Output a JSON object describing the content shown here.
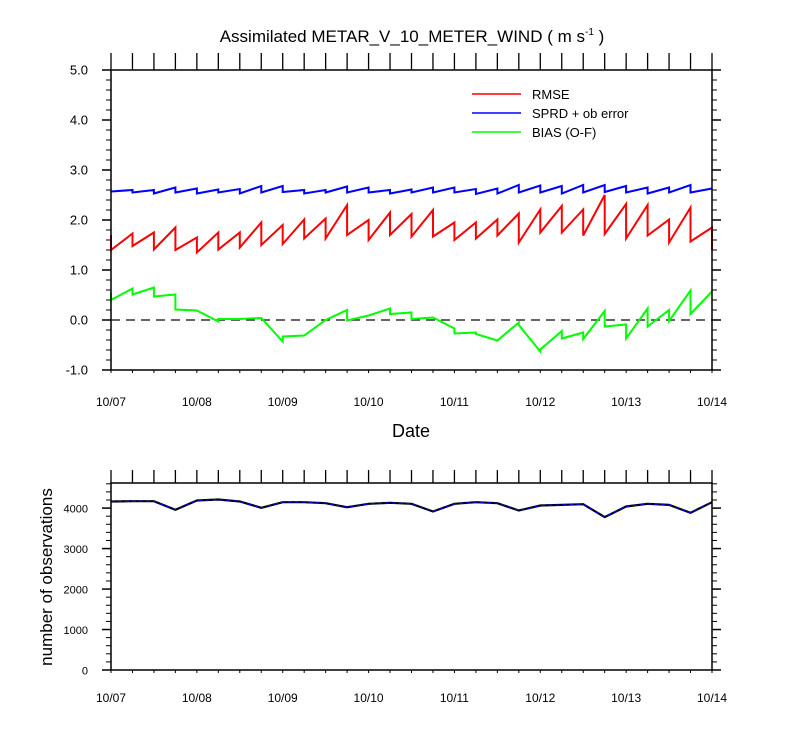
{
  "chart_data": [
    {
      "type": "line",
      "title": "Assimilated METAR_V_10_METER_WIND ( m s",
      "title_superscript": "-1",
      "title_close": " )",
      "xlabel": "Date",
      "ylabel": "",
      "ylim": [
        -1.0,
        5.0
      ],
      "yticks": [
        5.0,
        4.0,
        3.0,
        2.0,
        1.0,
        0.0,
        -1.0
      ],
      "ytick_labels": [
        "5.0",
        "4.0",
        "3.0",
        "2.0",
        "1.0",
        "0.0",
        "-1.0"
      ],
      "x_steps_per_day": 4,
      "n_times": 29,
      "xtick_labels": [
        "10/07",
        "10/08",
        "10/09",
        "10/10",
        "10/11",
        "10/12",
        "10/13",
        "10/14"
      ],
      "zero_line": true,
      "legend_position": "top-right",
      "series": [
        {
          "name": "RMSE",
          "color": "#ff0000",
          "before": [
            1.7,
            1.73,
            1.75,
            1.85,
            1.65,
            1.75,
            1.75,
            1.95,
            1.9,
            2.01,
            2.03,
            2.3,
            2.0,
            2.15,
            2.12,
            2.2,
            1.95,
            1.95,
            2.01,
            2.13,
            2.21,
            2.28,
            2.21,
            2.5,
            2.32,
            2.3,
            2.01,
            2.25,
            1.85
          ],
          "after": [
            1.4,
            1.48,
            1.41,
            1.4,
            1.35,
            1.41,
            1.45,
            1.5,
            1.52,
            1.63,
            1.63,
            1.7,
            1.6,
            1.7,
            1.67,
            1.67,
            1.6,
            1.63,
            1.69,
            1.55,
            1.75,
            1.75,
            1.69,
            1.72,
            1.63,
            1.69,
            1.55,
            1.57,
            1.4
          ]
        },
        {
          "name": "SPRD + ob error",
          "color": "#0000ff",
          "before": [
            2.57,
            2.6,
            2.6,
            2.65,
            2.63,
            2.61,
            2.62,
            2.68,
            2.68,
            2.6,
            2.6,
            2.67,
            2.65,
            2.6,
            2.61,
            2.65,
            2.65,
            2.62,
            2.63,
            2.7,
            2.69,
            2.68,
            2.7,
            2.7,
            2.68,
            2.65,
            2.65,
            2.7,
            2.63
          ],
          "after": [
            2.57,
            2.55,
            2.53,
            2.55,
            2.53,
            2.55,
            2.53,
            2.55,
            2.56,
            2.53,
            2.55,
            2.55,
            2.55,
            2.53,
            2.55,
            2.55,
            2.55,
            2.52,
            2.53,
            2.55,
            2.55,
            2.53,
            2.55,
            2.56,
            2.55,
            2.53,
            2.55,
            2.55,
            2.63
          ]
        },
        {
          "name": "BIAS (O-F)",
          "color": "#00ff00",
          "before": [
            0.55,
            0.63,
            0.65,
            0.51,
            0.19,
            -0.03,
            0.02,
            0.04,
            -0.43,
            -0.31,
            0.0,
            0.2,
            0.09,
            0.23,
            0.15,
            0.05,
            -0.17,
            -0.25,
            -0.41,
            -0.05,
            -0.63,
            -0.22,
            -0.25,
            0.18,
            -0.09,
            0.23,
            0.2,
            0.59,
            0.57
          ],
          "after": [
            0.4,
            0.51,
            0.47,
            0.21,
            0.19,
            0.02,
            0.02,
            0.04,
            -0.33,
            -0.31,
            0.0,
            -0.01,
            0.09,
            0.12,
            0.02,
            0.05,
            -0.27,
            -0.28,
            -0.41,
            -0.1,
            -0.59,
            -0.37,
            -0.38,
            -0.13,
            -0.37,
            -0.13,
            -0.02,
            0.12,
            0.57
          ]
        }
      ]
    },
    {
      "type": "line",
      "title": "",
      "xlabel": "",
      "ylabel": "number of observations",
      "ylim": [
        0,
        4620
      ],
      "yticks": [
        0,
        1000,
        2000,
        3000,
        4000
      ],
      "ytick_labels": [
        "0",
        "1000",
        "2000",
        "3000",
        "4000"
      ],
      "xtick_labels": [
        "10/07",
        "10/08",
        "10/09",
        "10/10",
        "10/11",
        "10/12",
        "10/13",
        "10/14"
      ],
      "series": [
        {
          "color": "#000000",
          "values": [
            4163,
            4171,
            4171,
            3957,
            4187,
            4212,
            4163,
            4007,
            4146,
            4146,
            4122,
            4023,
            4105,
            4130,
            4105,
            3916,
            4105,
            4146,
            4122,
            3941,
            4064,
            4080,
            4097,
            3777,
            4040,
            4105,
            4080,
            3883,
            4146
          ]
        },
        {
          "color": "#0000ff",
          "values": [
            4163,
            4171,
            4171,
            3957,
            4187,
            4212,
            4163,
            4007,
            4146,
            4146,
            4122,
            4023,
            4105,
            4130,
            4105,
            3916,
            4105,
            4146,
            4122,
            3941,
            4064,
            4080,
            4097,
            3777,
            4040,
            4105,
            4080,
            3883,
            4146
          ]
        }
      ]
    }
  ]
}
